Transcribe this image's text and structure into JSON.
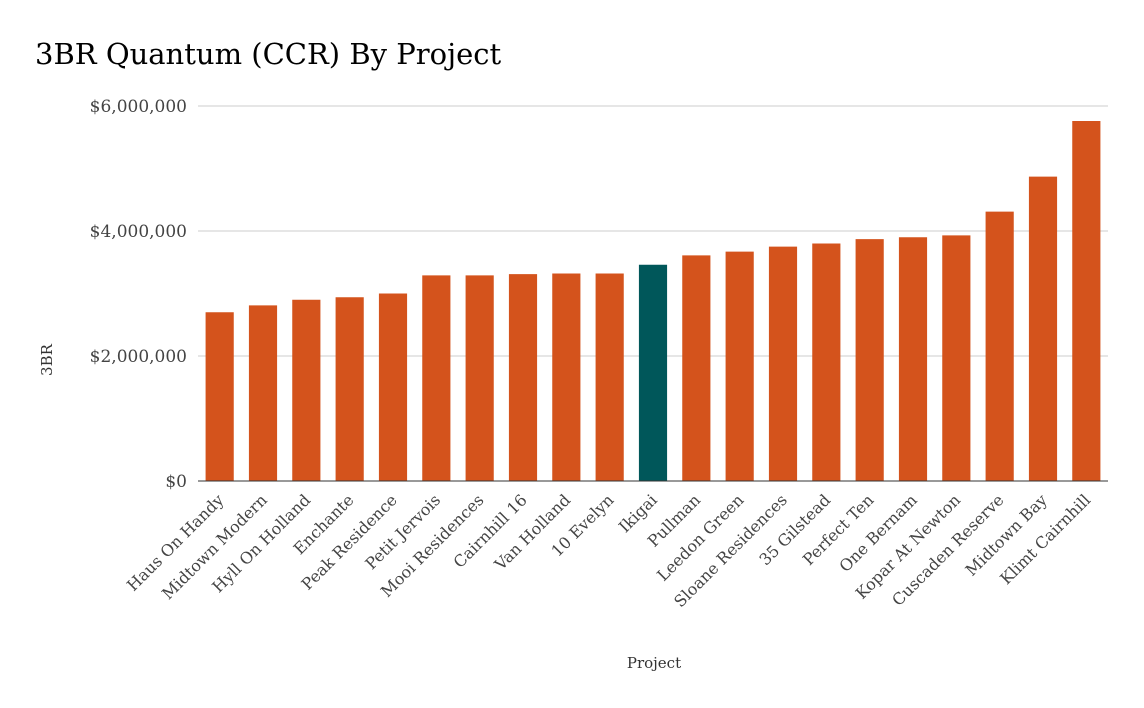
{
  "chart_data": {
    "type": "bar",
    "title": "3BR Quantum (CCR) By Project",
    "xlabel": "Project",
    "ylabel": "3BR",
    "ylim": [
      0,
      6000000
    ],
    "yticks": [
      0,
      2000000,
      4000000,
      6000000
    ],
    "ytick_labels": [
      "$0",
      "$2,000,000",
      "$4,000,000",
      "$6,000,000"
    ],
    "grid": true,
    "categories": [
      "Haus On Handy",
      "Midtown Modern",
      "Hyll On Holland",
      "Enchante",
      "Peak Residence",
      "Petit Jervois",
      "Mooi Residences",
      "Cairnhill 16",
      "Van Holland",
      "10 Evelyn",
      "Ikigai",
      "Pullman",
      "Leedon Green",
      "Sloane Residences",
      "35 Gilstead",
      "Perfect Ten",
      "One Bernam",
      "Kopar At Newton",
      "Cuscaden Reserve",
      "Midtown Bay",
      "Klimt Cairnhill"
    ],
    "values": [
      2700000,
      2810000,
      2900000,
      2940000,
      3000000,
      3290000,
      3290000,
      3310000,
      3320000,
      3320000,
      3460000,
      3610000,
      3670000,
      3750000,
      3800000,
      3870000,
      3900000,
      3930000,
      4310000,
      4870000,
      5760000
    ],
    "colors": {
      "default": "#d4531c",
      "highlight": "#00575a"
    },
    "highlight_category": "Ikigai"
  }
}
